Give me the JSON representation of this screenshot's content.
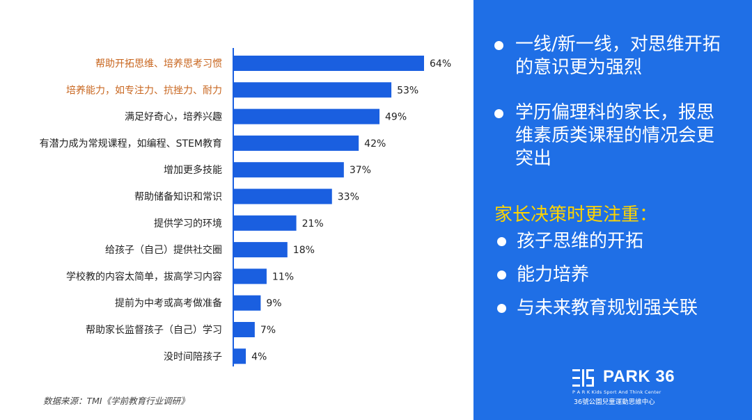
{
  "chart_data": {
    "type": "bar",
    "orientation": "horizontal",
    "categories": [
      "帮助开拓思维、培养思考习惯",
      "培养能力，如专注力、抗挫力、耐力",
      "满足好奇心，培养兴趣",
      "有潜力成为常规课程，如编程、STEM教育",
      "增加更多技能",
      "帮助储备知识和常识",
      "提供学习的环境",
      "给孩子（自己）提供社交圈",
      "学校教的内容太简单，拔高学习内容",
      "提前为中考或高考做准备",
      "帮助家长监督孩子（自己）学习",
      "没时间陪孩子"
    ],
    "values": [
      64,
      53,
      49,
      42,
      37,
      33,
      21,
      18,
      11,
      9,
      7,
      4
    ],
    "value_labels": [
      "64%",
      "53%",
      "49%",
      "42%",
      "37%",
      "33%",
      "21%",
      "18%",
      "11%",
      "9%",
      "7%",
      "4%"
    ],
    "highlighted_categories": [
      0,
      1
    ],
    "xlim": [
      0,
      70
    ],
    "grid": false,
    "title": "",
    "xlabel": "",
    "ylabel": "",
    "colors": {
      "bar": "#1a5fe0",
      "highlight_label": "#c8661f",
      "label": "#222222",
      "axis": "#1a5fe0"
    }
  },
  "source_note": "数据来源：TMI《学前教育行业调研》",
  "sidebar": {
    "bullets": [
      "一线/新一线，对思维开拓的意识更为强烈",
      "学历偏理科的家长，报思维素质类课程的情况会更突出"
    ],
    "focus_title": "家长决策时更注重：",
    "focus_items": [
      "孩子思维的开拓",
      "能力培养",
      "与未来教育规划强关联"
    ],
    "colors": {
      "background": "#1f6fe6",
      "text": "#ffffff",
      "focus_title": "#ffd400"
    }
  },
  "logo": {
    "name": "PARK 36",
    "sub": "P A R K  Kids Sport And Think Center",
    "cn": "36號公園兒童運動思維中心",
    "icon": "park36-logo-icon"
  }
}
